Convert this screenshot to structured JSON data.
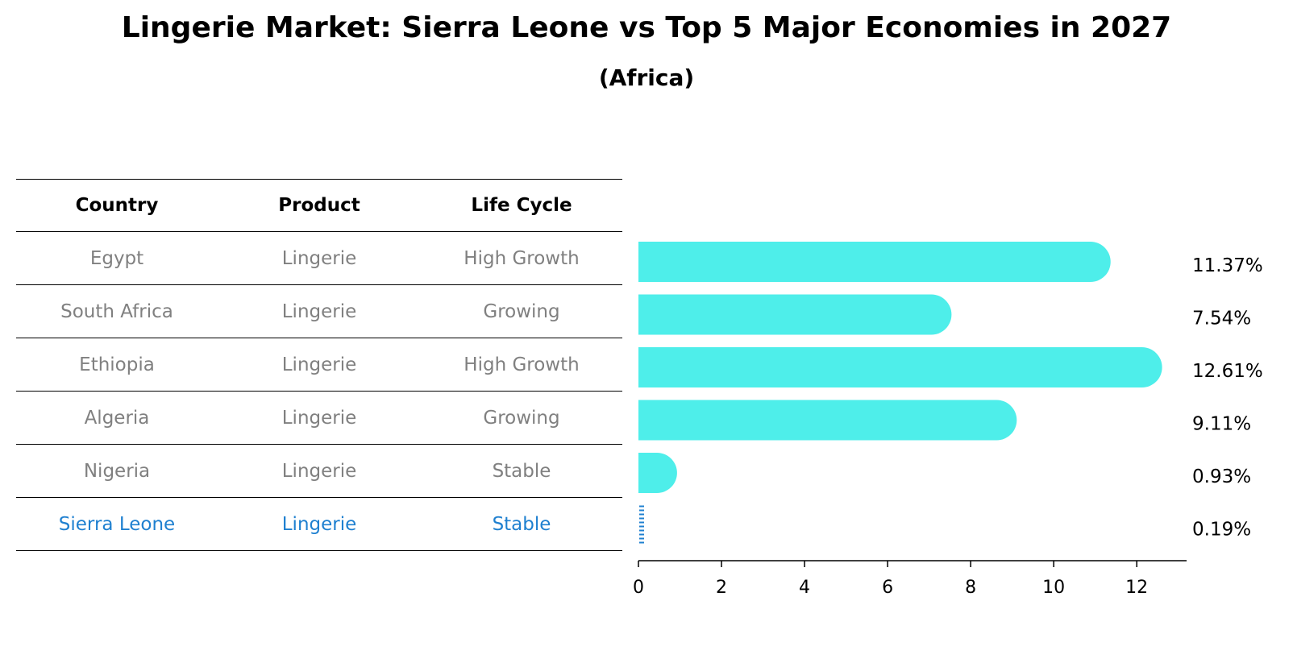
{
  "title": "Lingerie Market: Sierra Leone vs Top 5 Major Economies in 2027",
  "subtitle": "(Africa)",
  "table": {
    "headers": [
      "Country",
      "Product",
      "Life Cycle"
    ],
    "rows": [
      [
        "Egypt",
        "Lingerie",
        "High Growth"
      ],
      [
        "South Africa",
        "Lingerie",
        "Growing"
      ],
      [
        "Ethiopia",
        "Lingerie",
        "High Growth"
      ],
      [
        "Algeria",
        "Lingerie",
        "Growing"
      ],
      [
        "Nigeria",
        "Lingerie",
        "Stable"
      ],
      [
        "Sierra Leone",
        "Lingerie",
        "Stable"
      ]
    ]
  },
  "colors": {
    "bar": "#4eeeea",
    "highlight": "#1f80d0",
    "muted_text": "#808080"
  },
  "chart_data": {
    "type": "bar",
    "orientation": "horizontal",
    "categories": [
      "Egypt",
      "South Africa",
      "Ethiopia",
      "Algeria",
      "Nigeria",
      "Sierra Leone"
    ],
    "values": [
      11.37,
      7.54,
      12.61,
      9.11,
      0.93,
      0.19
    ],
    "value_labels": [
      "11.37%",
      "7.54%",
      "12.61%",
      "9.11%",
      "0.93%",
      "0.19%"
    ],
    "highlight": "Sierra Leone",
    "xlim": [
      0,
      13.2
    ],
    "xticks": [
      0,
      2,
      4,
      6,
      8,
      10,
      12
    ],
    "grid": false
  }
}
